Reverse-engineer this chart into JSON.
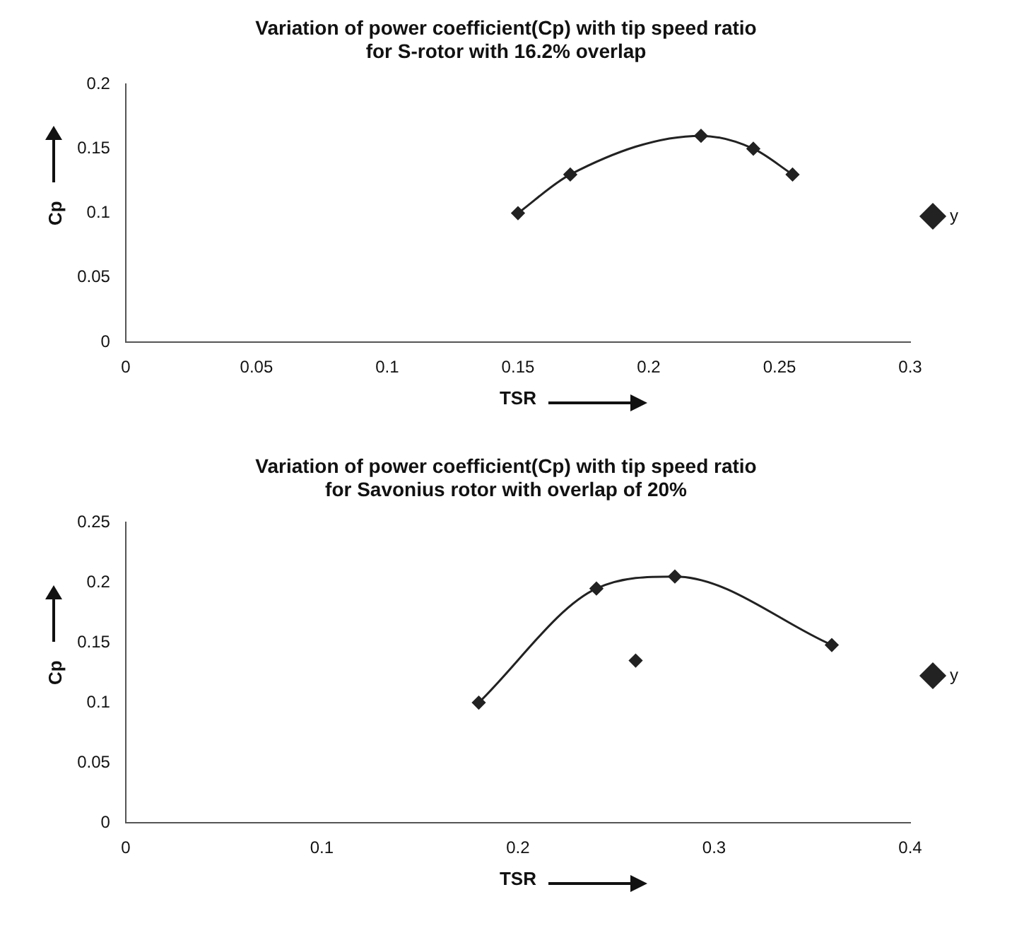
{
  "chart_data": [
    {
      "type": "line",
      "title": "Variation of power coefficient(Cp) with tip speed ratio\nfor S-rotor with 16.2% overlap",
      "xlabel": "TSR",
      "ylabel": "Cp",
      "xlim": [
        0,
        0.3
      ],
      "xticks": [
        0,
        0.05,
        0.1,
        0.15,
        0.2,
        0.25,
        0.3
      ],
      "ylim": [
        0,
        0.2
      ],
      "yticks": [
        0,
        0.05,
        0.1,
        0.15,
        0.2
      ],
      "grid": false,
      "legend": "right",
      "marker": "diamond",
      "line_style": "solid",
      "series": [
        {
          "name": "y",
          "color": "#222222",
          "x": [
            0.15,
            0.17,
            0.22,
            0.24,
            0.255
          ],
          "values": [
            0.1,
            0.13,
            0.16,
            0.15,
            0.13
          ]
        }
      ]
    },
    {
      "type": "line",
      "title": "Variation of power coefficient(Cp) with tip speed ratio\nfor Savonius rotor with overlap of 20%",
      "xlabel": "TSR",
      "ylabel": "Cp",
      "xlim": [
        0,
        0.4
      ],
      "xticks": [
        0,
        0.1,
        0.2,
        0.3,
        0.4
      ],
      "ylim": [
        0,
        0.25
      ],
      "yticks": [
        0,
        0.05,
        0.1,
        0.15,
        0.2,
        0.25
      ],
      "grid": false,
      "legend": "right",
      "marker": "diamond",
      "line_style": "solid",
      "series": [
        {
          "name": "y",
          "color": "#222222",
          "x": [
            0.18,
            0.24,
            0.28,
            0.36
          ],
          "values": [
            0.1,
            0.195,
            0.205,
            0.148
          ]
        },
        {
          "type": "scatter",
          "color": "#222222",
          "x": [
            0.26
          ],
          "values": [
            0.135
          ]
        }
      ]
    }
  ]
}
